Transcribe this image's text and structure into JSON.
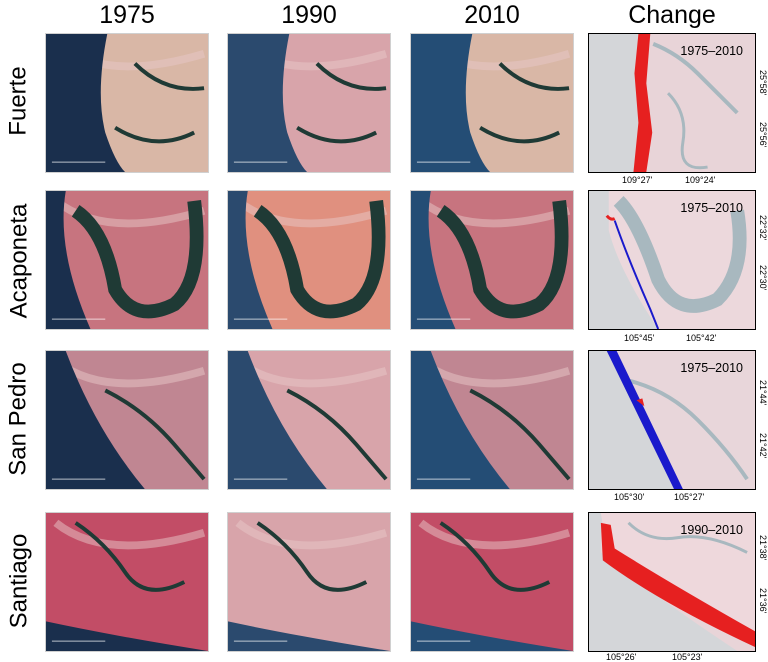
{
  "columns": [
    "1975",
    "1990",
    "2010",
    "Change"
  ],
  "rows": [
    {
      "site": "Fuerte",
      "period": "1975–2010",
      "lat": [
        "25°58'",
        "25°56'"
      ],
      "lon": [
        "109°27'",
        "109°24'"
      ],
      "change_color": "#e62020"
    },
    {
      "site": "Acaponeta",
      "period": "1975–2010",
      "lat": [
        "22°32'",
        "22°30'"
      ],
      "lon": [
        "105°45'",
        "105°42'"
      ],
      "change_color": "#1a1acc"
    },
    {
      "site": "San Pedro",
      "period": "1975–2010",
      "lat": [
        "21°44'",
        "21°42'"
      ],
      "lon": [
        "105°30'",
        "105°27'"
      ],
      "change_color": "#1a1acc"
    },
    {
      "site": "Santiago",
      "period": "1990–2010",
      "lat": [
        "21°38'",
        "21°36'"
      ],
      "lon": [
        "105°26'",
        "105°23'"
      ],
      "change_color": "#e62020"
    }
  ],
  "colors": {
    "erosion": "#e62020",
    "accretion": "#1a1acc",
    "ocean": "#1c3a5c",
    "land": "#c06078"
  }
}
